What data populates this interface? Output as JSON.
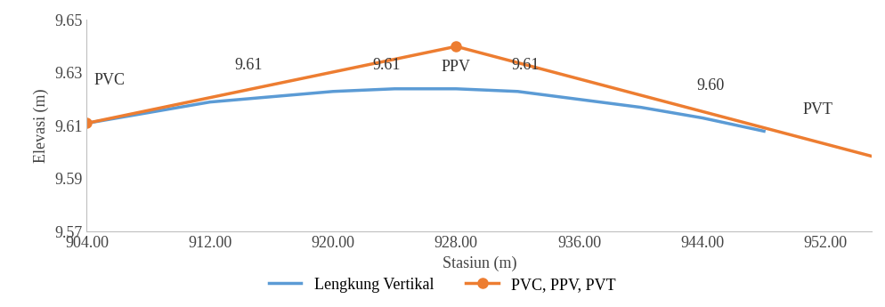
{
  "chart_data": {
    "type": "line",
    "x_label": "Stasiun (m)",
    "y_label": "Elevasi (m)",
    "series": [
      {
        "name": "Lengkung Vertikal",
        "color": "#5b9bd5",
        "marker": "none",
        "line_style": "solid",
        "x": [
          904,
          908,
          912,
          916,
          920,
          924,
          928,
          932,
          936,
          940,
          944,
          948
        ],
        "values": [
          9.611,
          9.615,
          9.619,
          9.621,
          9.623,
          9.624,
          9.624,
          9.623,
          9.62,
          9.617,
          9.613,
          9.608
        ]
      },
      {
        "name": "PVC, PPV, PVT",
        "color": "#ed7d31",
        "marker": "o",
        "line_style": "solid",
        "x": [
          904,
          928,
          956
        ],
        "values": [
          9.611,
          9.64,
          9.597
        ]
      }
    ],
    "annotations": [
      {
        "text": "PVC",
        "x": 905.5,
        "y": 9.627
      },
      {
        "text": "9.61",
        "x": 914.5,
        "y": 9.633
      },
      {
        "text": "9.61",
        "x": 923.5,
        "y": 9.633
      },
      {
        "text": "PPV",
        "x": 928.0,
        "y": 9.632
      },
      {
        "text": "9.61",
        "x": 932.5,
        "y": 9.633
      },
      {
        "text": "9.60",
        "x": 944.5,
        "y": 9.625
      },
      {
        "text": "PVT",
        "x": 951.5,
        "y": 9.616
      }
    ],
    "xlim": [
      904,
      955
    ],
    "xticks": [
      {
        "value": 904,
        "label": "904.00"
      },
      {
        "value": 912,
        "label": "912.00"
      },
      {
        "value": 920,
        "label": "920.00"
      },
      {
        "value": 928,
        "label": "928.00"
      },
      {
        "value": 936,
        "label": "936.00"
      },
      {
        "value": 944,
        "label": "944.00"
      },
      {
        "value": 952,
        "label": "952.00"
      }
    ],
    "ylim": [
      9.57,
      9.65
    ],
    "yticks": [
      9.57,
      9.59,
      9.61,
      9.63,
      9.65
    ],
    "grid": false,
    "legend": "lower center"
  }
}
